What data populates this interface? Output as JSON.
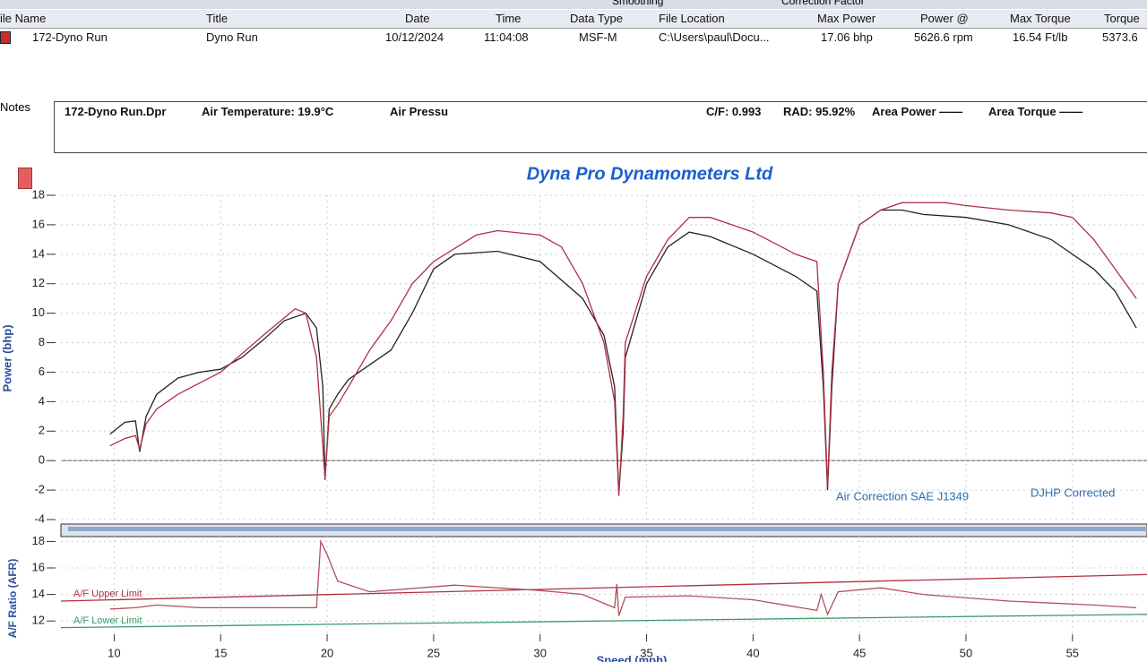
{
  "toolbar": {
    "smoothing": "Smoothing",
    "correction_factor": "Correction Factor"
  },
  "header": {
    "columns": [
      "ile Name",
      "Title",
      "Date",
      "Time",
      "Data Type",
      "File Location",
      "Max Power",
      "Power @",
      "Max Torque",
      "Torque"
    ],
    "row": [
      "172-Dyno Run",
      "Dyno Run",
      "10/12/2024",
      "11:04:08",
      "MSF-M",
      "C:\\Users\\paul\\Docu...",
      "17.06 bhp",
      "5626.6 rpm",
      "16.54 Ft/lb",
      "5373.6"
    ]
  },
  "notes": {
    "label": "Notes",
    "items": [
      "172-Dyno Run.Dpr",
      "Air Temperature: 19.9°C",
      "Air Pressu",
      "C/F: 0.993",
      "RAD: 95.92%",
      "Area Power ——",
      "Area Torque ——"
    ]
  },
  "chart_data": [
    {
      "type": "line",
      "title": "Dyna Pro Dynamometers Ltd",
      "y_label": "Power (bhp)",
      "annotations": [
        "Air Correction SAE J1349",
        "DJHP Corrected"
      ],
      "xlim": [
        7.5,
        58.5
      ],
      "ylim": [
        -4,
        18
      ],
      "yticks": [
        -4,
        -2,
        0,
        2,
        4,
        6,
        8,
        10,
        12,
        14,
        16,
        18
      ],
      "grid": true,
      "series": [
        {
          "color": "#222222",
          "x": [
            9.8,
            10.5,
            11,
            11.2,
            11.5,
            12,
            13,
            14,
            15,
            16,
            17,
            18,
            19,
            19.5,
            19.8,
            19.9,
            20.1,
            20.5,
            21,
            22,
            23,
            24,
            25,
            26,
            28,
            30,
            32,
            33,
            33.5,
            33.7,
            33.9,
            34,
            35,
            36,
            37,
            38,
            40,
            42,
            43,
            43.3,
            43.5,
            43.7,
            44,
            45,
            46,
            47,
            48,
            50,
            52,
            54,
            56,
            57,
            58
          ],
          "values": [
            1.8,
            2.6,
            2.7,
            0.6,
            3,
            4.5,
            5.6,
            6,
            6.2,
            7,
            8.2,
            9.5,
            10,
            9,
            5,
            -1.3,
            3.5,
            4.5,
            5.5,
            6.5,
            7.5,
            10,
            13,
            14,
            14.2,
            13.5,
            11,
            8.5,
            5,
            -2.2,
            2,
            7,
            12,
            14.5,
            15.5,
            15.2,
            14,
            12.5,
            11.5,
            5,
            -2,
            5,
            12,
            16,
            17,
            17,
            16.7,
            16.5,
            16,
            15,
            13,
            11.5,
            9
          ]
        },
        {
          "color": "#b03040",
          "x": [
            9.8,
            10.5,
            11,
            11.2,
            11.5,
            12,
            13,
            15,
            17,
            18.5,
            19,
            19.5,
            19.9,
            20.1,
            20.5,
            21,
            22,
            23,
            24,
            25,
            27,
            28,
            30,
            31,
            32,
            33,
            33.5,
            33.7,
            33.9,
            34,
            35,
            36,
            37,
            38,
            40,
            42,
            43,
            43.3,
            43.5,
            43.7,
            44,
            45,
            46,
            47,
            49,
            50,
            52,
            54,
            55,
            56,
            57,
            58
          ],
          "values": [
            1,
            1.5,
            1.7,
            0.8,
            2.5,
            3.5,
            4.5,
            6,
            8.5,
            10.3,
            10,
            7,
            -1.2,
            3,
            3.8,
            5,
            7.5,
            9.5,
            12,
            13.5,
            15.3,
            15.6,
            15.3,
            14.5,
            12,
            8,
            4,
            -2.4,
            3,
            8,
            12.5,
            15,
            16.5,
            16.5,
            15.5,
            14,
            13.5,
            6,
            -1.8,
            6,
            12,
            16,
            17,
            17.5,
            17.5,
            17.3,
            17,
            16.8,
            16.5,
            15,
            13,
            11
          ]
        }
      ]
    },
    {
      "type": "line",
      "y_label": "A/F Ratio (AFR)",
      "x_label": "Speed (mph)",
      "xlim": [
        7.5,
        58.5
      ],
      "ylim": [
        11,
        18.5
      ],
      "xticks": [
        10,
        15,
        20,
        25,
        30,
        35,
        40,
        45,
        50,
        55
      ],
      "yticks": [
        12,
        14,
        16,
        18
      ],
      "grid": true,
      "series": [
        {
          "name": "A/F Upper Limit",
          "color": "#b03040",
          "x": [
            7.5,
            58.5
          ],
          "values": [
            13.5,
            15.5
          ]
        },
        {
          "name": "A/F Lower Limit",
          "color": "#3a9a6a",
          "x": [
            7.5,
            58.5
          ],
          "values": [
            11.5,
            12.5
          ]
        },
        {
          "color": "#b05060",
          "x": [
            9.8,
            11,
            12,
            14,
            19.5,
            19.7,
            20,
            20.5,
            22,
            26,
            30,
            32,
            33.5,
            33.6,
            33.7,
            34,
            37,
            40,
            43,
            43.2,
            43.5,
            44,
            46,
            48,
            52,
            56,
            58
          ],
          "values": [
            12.9,
            13,
            13.2,
            13,
            13,
            18,
            17,
            15,
            14.2,
            14.7,
            14.3,
            14,
            13,
            14.8,
            12.4,
            13.8,
            13.9,
            13.6,
            12.8,
            14,
            12.5,
            14.2,
            14.5,
            14,
            13.5,
            13.2,
            13
          ]
        }
      ]
    }
  ]
}
